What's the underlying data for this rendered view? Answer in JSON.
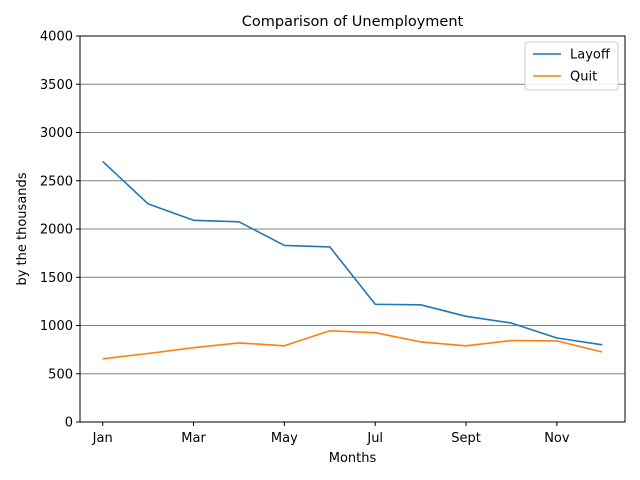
{
  "chart_data": {
    "type": "line",
    "title": "Comparison of Unemployment",
    "xlabel": "Months",
    "ylabel": "by the thousands",
    "x_tick_labels": [
      "Jan",
      "Mar",
      "May",
      "Jul",
      "Sept",
      "Nov"
    ],
    "x_tick_positions": [
      0,
      2,
      4,
      6,
      8,
      10
    ],
    "xlim": [
      -0.5,
      11.5
    ],
    "ylim": [
      0,
      4000
    ],
    "y_ticks": [
      0,
      500,
      1000,
      1500,
      2000,
      2500,
      3000,
      3500,
      4000
    ],
    "grid": "horizontal",
    "legend_position": "top-right",
    "x": [
      0,
      1,
      2,
      3,
      4,
      5,
      6,
      7,
      8,
      9,
      10,
      11
    ],
    "series": [
      {
        "name": "Layoff",
        "color": "#1f77b4",
        "values": [
          2700,
          2260,
          2090,
          2075,
          1830,
          1815,
          1220,
          1215,
          1095,
          1025,
          870,
          800
        ]
      },
      {
        "name": "Quit",
        "color": "#ff7f0e",
        "values": [
          655,
          710,
          770,
          820,
          790,
          945,
          925,
          830,
          790,
          845,
          840,
          725
        ]
      }
    ]
  }
}
